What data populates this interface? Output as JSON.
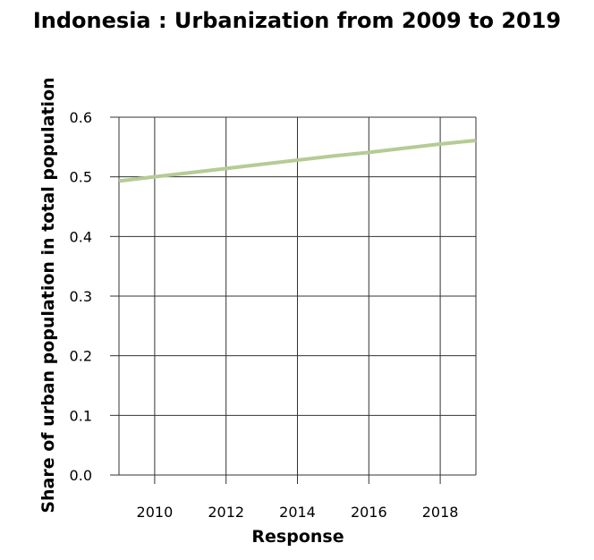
{
  "chart_data": {
    "type": "line",
    "title": "Indonesia : Urbanization from 2009 to 2019",
    "xlabel": "Response",
    "ylabel": "Share of urban population in total population",
    "xlim": [
      2009,
      2019
    ],
    "ylim": [
      0,
      0.6
    ],
    "x_ticks": [
      2010,
      2012,
      2014,
      2016,
      2018
    ],
    "x_tick_labels": [
      "2010",
      "2012",
      "2014",
      "2016",
      "2018"
    ],
    "y_ticks": [
      0,
      0.1,
      0.2,
      0.3,
      0.4,
      0.5,
      0.6
    ],
    "y_tick_labels": [
      "0.0",
      "0.1",
      "0.2",
      "0.3",
      "0.4",
      "0.5",
      "0.6"
    ],
    "grid": true,
    "series": [
      {
        "color": "#b5cc95",
        "x": [
          2009,
          2010,
          2011,
          2012,
          2013,
          2014,
          2015,
          2016,
          2017,
          2018,
          2019
        ],
        "y": [
          0.493,
          0.5,
          0.507,
          0.514,
          0.521,
          0.528,
          0.535,
          0.541,
          0.548,
          0.555,
          0.561
        ]
      }
    ]
  }
}
